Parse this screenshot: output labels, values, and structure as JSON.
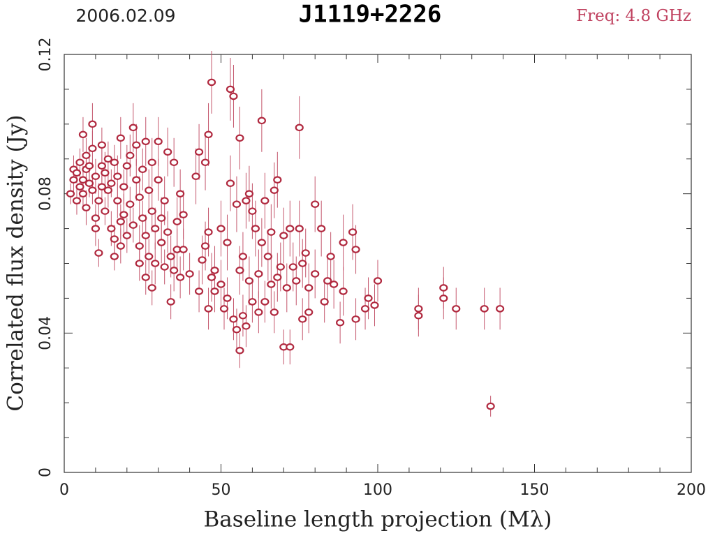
{
  "chart_data": {
    "type": "scatter",
    "title": "J1119+2226",
    "date": "2006.02.09",
    "freq": "Freq: 4.8 GHz",
    "xlabel": "Baseline length projection (Mλ)",
    "ylabel": "Correlated flux density (Jy)",
    "color": "#b0283e",
    "error_color": "#c4566c",
    "xlim": [
      0,
      200
    ],
    "ylim": [
      0,
      0.12
    ],
    "xticks": [
      0,
      50,
      100,
      150,
      200
    ],
    "yticks": [
      0,
      0.04,
      0.08,
      0.12
    ],
    "xminorticks": [
      10,
      20,
      30,
      40,
      60,
      70,
      80,
      90,
      110,
      120,
      130,
      140,
      160,
      170,
      180,
      190
    ],
    "yminorticks": [
      0.01,
      0.02,
      0.03,
      0.05,
      0.06,
      0.07,
      0.09,
      0.1,
      0.11
    ],
    "x": [
      2,
      3,
      3,
      4,
      4,
      5,
      5,
      6,
      6,
      6,
      7,
      7,
      7,
      8,
      8,
      9,
      9,
      9,
      10,
      10,
      10,
      11,
      11,
      12,
      12,
      12,
      13,
      13,
      14,
      14,
      15,
      15,
      16,
      16,
      16,
      17,
      17,
      18,
      18,
      18,
      19,
      19,
      20,
      20,
      21,
      21,
      22,
      22,
      23,
      23,
      24,
      24,
      24,
      25,
      25,
      26,
      26,
      26,
      27,
      27,
      28,
      28,
      28,
      29,
      29,
      30,
      30,
      31,
      31,
      32,
      32,
      33,
      33,
      34,
      34,
      35,
      35,
      36,
      36,
      37,
      37,
      38,
      38,
      40,
      42,
      43,
      43,
      44,
      45,
      45,
      46,
      46,
      46,
      47,
      47,
      48,
      48,
      50,
      50,
      51,
      52,
      52,
      53,
      53,
      54,
      54,
      55,
      55,
      56,
      56,
      56,
      57,
      57,
      58,
      58,
      59,
      59,
      60,
      60,
      61,
      62,
      62,
      63,
      63,
      64,
      64,
      65,
      66,
      66,
      67,
      67,
      68,
      68,
      69,
      70,
      70,
      71,
      72,
      72,
      73,
      74,
      75,
      75,
      76,
      76,
      77,
      78,
      78,
      80,
      80,
      82,
      83,
      84,
      85,
      86,
      88,
      89,
      89,
      92,
      93,
      93,
      96,
      97,
      99,
      100,
      113,
      113,
      121,
      121,
      125,
      134,
      136,
      139
    ],
    "values": [
      0.08,
      0.084,
      0.087,
      0.078,
      0.086,
      0.082,
      0.089,
      0.084,
      0.097,
      0.08,
      0.091,
      0.087,
      0.076,
      0.083,
      0.088,
      0.1,
      0.093,
      0.081,
      0.07,
      0.073,
      0.085,
      0.063,
      0.078,
      0.094,
      0.082,
      0.088,
      0.075,
      0.086,
      0.081,
      0.09,
      0.07,
      0.083,
      0.067,
      0.089,
      0.062,
      0.078,
      0.085,
      0.072,
      0.096,
      0.065,
      0.082,
      0.074,
      0.088,
      0.068,
      0.091,
      0.077,
      0.099,
      0.071,
      0.084,
      0.094,
      0.065,
      0.06,
      0.079,
      0.087,
      0.073,
      0.095,
      0.056,
      0.068,
      0.081,
      0.062,
      0.089,
      0.075,
      0.053,
      0.06,
      0.07,
      0.095,
      0.084,
      0.066,
      0.073,
      0.059,
      0.078,
      0.069,
      0.092,
      0.049,
      0.062,
      0.089,
      0.058,
      0.072,
      0.064,
      0.08,
      0.056,
      0.074,
      0.064,
      0.057,
      0.085,
      0.052,
      0.092,
      0.061,
      0.065,
      0.089,
      0.097,
      0.047,
      0.069,
      0.112,
      0.056,
      0.052,
      0.058,
      0.07,
      0.054,
      0.047,
      0.05,
      0.066,
      0.11,
      0.083,
      0.108,
      0.044,
      0.041,
      0.077,
      0.035,
      0.096,
      0.058,
      0.045,
      0.062,
      0.078,
      0.042,
      0.055,
      0.08,
      0.049,
      0.075,
      0.07,
      0.057,
      0.046,
      0.101,
      0.066,
      0.078,
      0.049,
      0.062,
      0.054,
      0.069,
      0.081,
      0.046,
      0.056,
      0.084,
      0.059,
      0.036,
      0.068,
      0.053,
      0.036,
      0.07,
      0.059,
      0.055,
      0.099,
      0.07,
      0.044,
      0.06,
      0.063,
      0.046,
      0.053,
      0.077,
      0.057,
      0.07,
      0.049,
      0.055,
      0.062,
      0.054,
      0.043,
      0.066,
      0.052,
      0.069,
      0.044,
      0.064,
      0.047,
      0.05,
      0.048,
      0.055,
      0.045,
      0.047,
      0.05,
      0.053,
      0.047,
      0.047,
      0.019,
      0.047
    ],
    "errors": [
      0.003,
      0.004,
      0.004,
      0.004,
      0.003,
      0.005,
      0.004,
      0.004,
      0.005,
      0.004,
      0.005,
      0.004,
      0.005,
      0.004,
      0.005,
      0.006,
      0.005,
      0.004,
      0.005,
      0.004,
      0.005,
      0.004,
      0.005,
      0.005,
      0.004,
      0.005,
      0.004,
      0.006,
      0.005,
      0.005,
      0.005,
      0.004,
      0.004,
      0.005,
      0.004,
      0.005,
      0.006,
      0.005,
      0.006,
      0.005,
      0.005,
      0.006,
      0.006,
      0.005,
      0.006,
      0.005,
      0.007,
      0.005,
      0.006,
      0.006,
      0.006,
      0.005,
      0.006,
      0.006,
      0.005,
      0.007,
      0.005,
      0.006,
      0.006,
      0.005,
      0.007,
      0.006,
      0.005,
      0.006,
      0.006,
      0.007,
      0.006,
      0.006,
      0.006,
      0.005,
      0.007,
      0.006,
      0.007,
      0.005,
      0.006,
      0.007,
      0.006,
      0.007,
      0.006,
      0.007,
      0.006,
      0.007,
      0.006,
      0.006,
      0.008,
      0.006,
      0.008,
      0.007,
      0.007,
      0.008,
      0.009,
      0.006,
      0.007,
      0.009,
      0.007,
      0.006,
      0.007,
      0.008,
      0.007,
      0.006,
      0.006,
      0.008,
      0.009,
      0.008,
      0.009,
      0.006,
      0.006,
      0.008,
      0.005,
      0.009,
      0.007,
      0.006,
      0.007,
      0.008,
      0.006,
      0.007,
      0.008,
      0.006,
      0.008,
      0.008,
      0.007,
      0.006,
      0.009,
      0.007,
      0.008,
      0.006,
      0.007,
      0.007,
      0.008,
      0.008,
      0.006,
      0.007,
      0.008,
      0.007,
      0.005,
      0.008,
      0.007,
      0.005,
      0.008,
      0.007,
      0.007,
      0.009,
      0.008,
      0.006,
      0.007,
      0.007,
      0.006,
      0.007,
      0.008,
      0.007,
      0.008,
      0.006,
      0.007,
      0.007,
      0.007,
      0.006,
      0.008,
      0.007,
      0.008,
      0.006,
      0.007,
      0.006,
      0.006,
      0.006,
      0.006,
      0.006,
      0.006,
      0.006,
      0.006,
      0.006,
      0.006,
      0.003,
      0.006
    ]
  }
}
